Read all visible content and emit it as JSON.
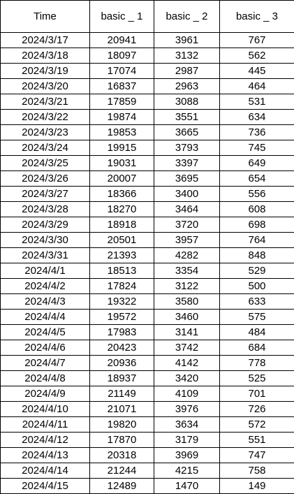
{
  "chart_data": {
    "type": "table",
    "columns": [
      "Time",
      "basic _ 1",
      "basic _ 2",
      "basic _ 3"
    ],
    "rows": [
      [
        "2024/3/17",
        20941,
        3961,
        767
      ],
      [
        "2024/3/18",
        18097,
        3132,
        562
      ],
      [
        "2024/3/19",
        17074,
        2987,
        445
      ],
      [
        "2024/3/20",
        16837,
        2963,
        464
      ],
      [
        "2024/3/21",
        17859,
        3088,
        531
      ],
      [
        "2024/3/22",
        19874,
        3551,
        634
      ],
      [
        "2024/3/23",
        19853,
        3665,
        736
      ],
      [
        "2024/3/24",
        19915,
        3793,
        745
      ],
      [
        "2024/3/25",
        19031,
        3397,
        649
      ],
      [
        "2024/3/26",
        20007,
        3695,
        654
      ],
      [
        "2024/3/27",
        18366,
        3400,
        556
      ],
      [
        "2024/3/28",
        18270,
        3464,
        608
      ],
      [
        "2024/3/29",
        18918,
        3720,
        698
      ],
      [
        "2024/3/30",
        20501,
        3957,
        764
      ],
      [
        "2024/3/31",
        21393,
        4282,
        848
      ],
      [
        "2024/4/1",
        18513,
        3354,
        529
      ],
      [
        "2024/4/2",
        17824,
        3122,
        500
      ],
      [
        "2024/4/3",
        19322,
        3580,
        633
      ],
      [
        "2024/4/4",
        19572,
        3460,
        575
      ],
      [
        "2024/4/5",
        17983,
        3141,
        484
      ],
      [
        "2024/4/6",
        20423,
        3742,
        684
      ],
      [
        "2024/4/7",
        20936,
        4142,
        778
      ],
      [
        "2024/4/8",
        18937,
        3420,
        525
      ],
      [
        "2024/4/9",
        21149,
        4109,
        701
      ],
      [
        "2024/4/10",
        21071,
        3976,
        726
      ],
      [
        "2024/4/11",
        19820,
        3634,
        572
      ],
      [
        "2024/4/12",
        17870,
        3179,
        551
      ],
      [
        "2024/4/13",
        20318,
        3969,
        747
      ],
      [
        "2024/4/14",
        21244,
        4215,
        758
      ],
      [
        "2024/4/15",
        12489,
        1470,
        149
      ]
    ],
    "colors": {
      "border": "#000000",
      "text": "#000000",
      "background": "#ffffff"
    }
  }
}
